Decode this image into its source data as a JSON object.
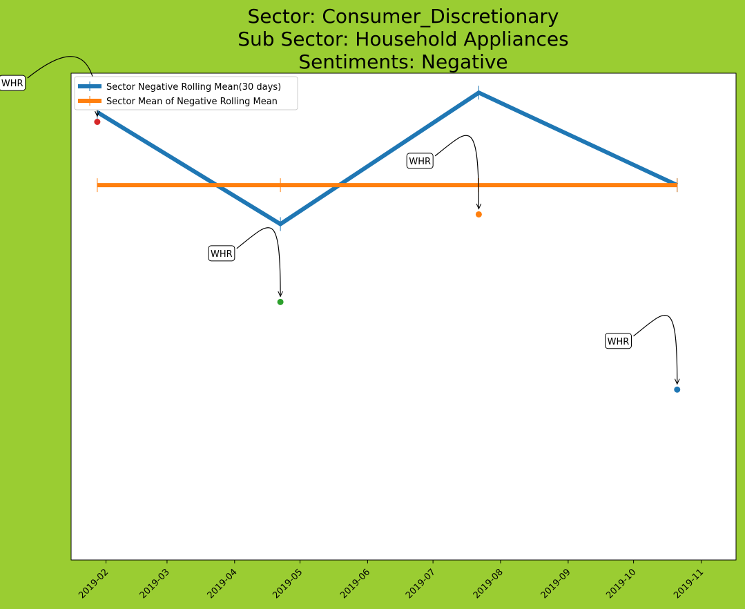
{
  "chart_data": {
    "type": "line",
    "title_lines": [
      "Sector:  Consumer_Discretionary",
      "Sub Sector:  Household Appliances",
      "Sentiments:  Negative"
    ],
    "xlabel": "",
    "ylabel": "",
    "x_tick_labels": [
      "2019-02",
      "2019-03",
      "2019-04",
      "2019-05",
      "2019-06",
      "2019-07",
      "2019-08",
      "2019-09",
      "2019-10",
      "2019-11"
    ],
    "xlim": [
      "2019-01-16",
      "2019-11-17"
    ],
    "ylim": [
      0,
      1
    ],
    "y_ticks_shown": false,
    "grid": false,
    "legend_position": "upper-left",
    "series": [
      {
        "name": "Sector Negative Rolling Mean(30 days)",
        "color": "#1f77b4",
        "x": [
          "2019-01-28",
          "2019-04-22",
          "2019-07-22",
          "2019-10-21"
        ],
        "y": [
          0.92,
          0.69,
          0.96,
          0.77
        ]
      },
      {
        "name": "Sector Mean of Negative Rolling Mean",
        "color": "#ff7f0e",
        "x": [
          "2019-01-28",
          "2019-04-22",
          "2019-07-22",
          "2019-10-21"
        ],
        "y": [
          0.77,
          0.77,
          0.77,
          0.77
        ]
      }
    ],
    "annotations": [
      {
        "text": "WHR",
        "x": "2019-01-28",
        "y": 0.9,
        "label_x": "2018-12-20",
        "label_y": 0.98,
        "color": "#d62728"
      },
      {
        "text": "WHR",
        "x": "2019-04-22",
        "y": 0.53,
        "label_x": "2019-03-26",
        "label_y": 0.63,
        "color": "#2ca02c"
      },
      {
        "text": "WHR",
        "x": "2019-07-22",
        "y": 0.71,
        "label_x": "2019-06-25",
        "label_y": 0.82,
        "color": "#ff7f0e"
      },
      {
        "text": "WHR",
        "x": "2019-10-21",
        "y": 0.35,
        "label_x": "2019-09-24",
        "label_y": 0.45,
        "color": "#1f77b4"
      }
    ]
  }
}
